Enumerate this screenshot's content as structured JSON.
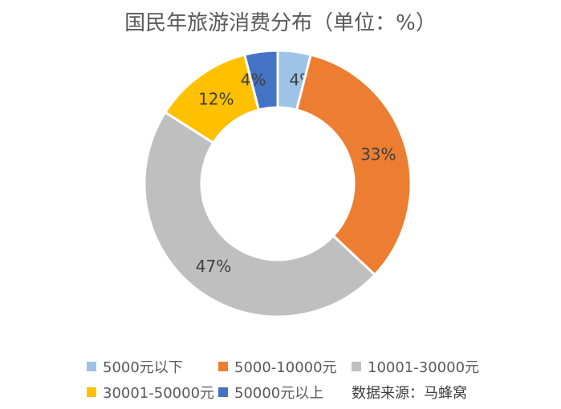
{
  "chart_data": {
    "type": "pie",
    "variant": "donut",
    "title": "国民年旅游消费分布（单位：%）",
    "categories": [
      "5000元以下",
      "5000-10000元",
      "10001-30000元",
      "30001-50000元",
      "50000元以上"
    ],
    "values": [
      4,
      33,
      47,
      12,
      4
    ],
    "labels": [
      "4%",
      "33%",
      "47%",
      "12%",
      "4%"
    ],
    "colors": [
      "#9dc3e6",
      "#ed7d31",
      "#bfbfbf",
      "#ffc000",
      "#4472c4"
    ],
    "legend_position": "bottom"
  },
  "source_note": "数据来源：马蜂窝"
}
